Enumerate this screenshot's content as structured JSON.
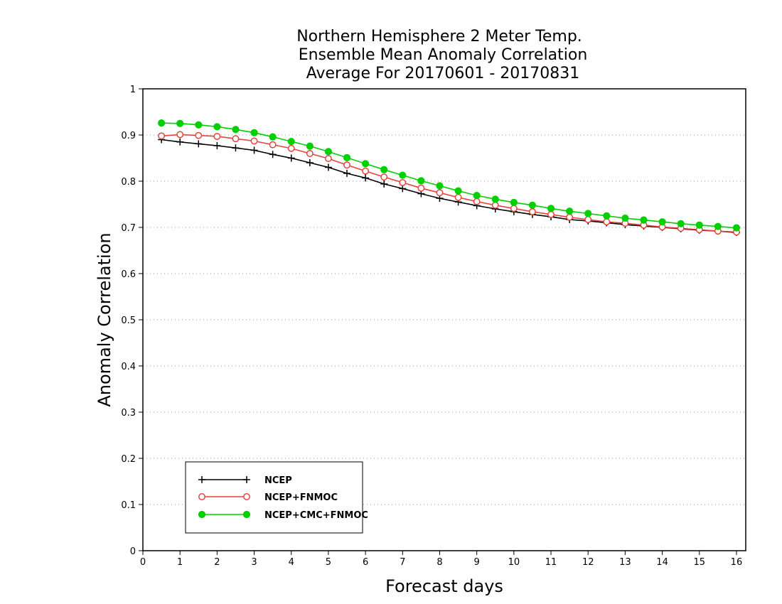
{
  "chart_data": {
    "type": "line",
    "title": [
      "Northern Hemisphere 2 Meter Temp.",
      "Ensemble Mean Anomaly Correlation",
      "Average For 20170601 - 20170831"
    ],
    "xlabel": "Forecast days",
    "ylabel": "Anomaly Correlation",
    "xlim": [
      0,
      16.25
    ],
    "ylim": [
      0,
      1
    ],
    "x_ticks": [
      "0",
      "1",
      "2",
      "3",
      "4",
      "5",
      "6",
      "7",
      "8",
      "9",
      "10",
      "11",
      "12",
      "13",
      "14",
      "15",
      "16"
    ],
    "y_ticks": [
      "0",
      "0.1",
      "0.2",
      "0.3",
      "0.4",
      "0.5",
      "0.6",
      "0.7",
      "0.8",
      "0.9",
      "1"
    ],
    "grid": "horizontal-dotted",
    "legend_position": "bottom-left",
    "x": [
      0.5,
      1.0,
      1.5,
      2.0,
      2.5,
      3.0,
      3.5,
      4.0,
      4.5,
      5.0,
      5.5,
      6.0,
      6.5,
      7.0,
      7.5,
      8.0,
      8.5,
      9.0,
      9.5,
      10.0,
      10.5,
      11.0,
      11.5,
      12.0,
      12.5,
      13.0,
      13.5,
      14.0,
      14.5,
      15.0,
      15.5,
      16.0
    ],
    "series": [
      {
        "name": "NCEP",
        "color": "#000000",
        "marker": "plus",
        "values": [
          0.89,
          0.885,
          0.881,
          0.877,
          0.872,
          0.867,
          0.858,
          0.85,
          0.84,
          0.83,
          0.817,
          0.807,
          0.794,
          0.784,
          0.773,
          0.763,
          0.755,
          0.747,
          0.74,
          0.734,
          0.728,
          0.723,
          0.717,
          0.714,
          0.71,
          0.706,
          0.703,
          0.7,
          0.697,
          0.694,
          0.692,
          0.689
        ]
      },
      {
        "name": "NCEP+FNMOC",
        "color": "#e8423d",
        "marker": "open-circle",
        "values": [
          0.898,
          0.901,
          0.899,
          0.897,
          0.892,
          0.887,
          0.879,
          0.871,
          0.86,
          0.849,
          0.835,
          0.822,
          0.809,
          0.797,
          0.785,
          0.775,
          0.765,
          0.756,
          0.748,
          0.741,
          0.734,
          0.728,
          0.722,
          0.717,
          0.712,
          0.709,
          0.705,
          0.701,
          0.698,
          0.695,
          0.692,
          0.69
        ]
      },
      {
        "name": "NCEP+CMC+FNMOC",
        "color": "#00d000",
        "marker": "filled-circle",
        "values": [
          0.926,
          0.925,
          0.922,
          0.918,
          0.912,
          0.905,
          0.896,
          0.886,
          0.876,
          0.864,
          0.851,
          0.838,
          0.825,
          0.813,
          0.801,
          0.79,
          0.779,
          0.769,
          0.761,
          0.754,
          0.748,
          0.741,
          0.735,
          0.73,
          0.725,
          0.72,
          0.716,
          0.712,
          0.708,
          0.705,
          0.702,
          0.699
        ]
      }
    ]
  }
}
